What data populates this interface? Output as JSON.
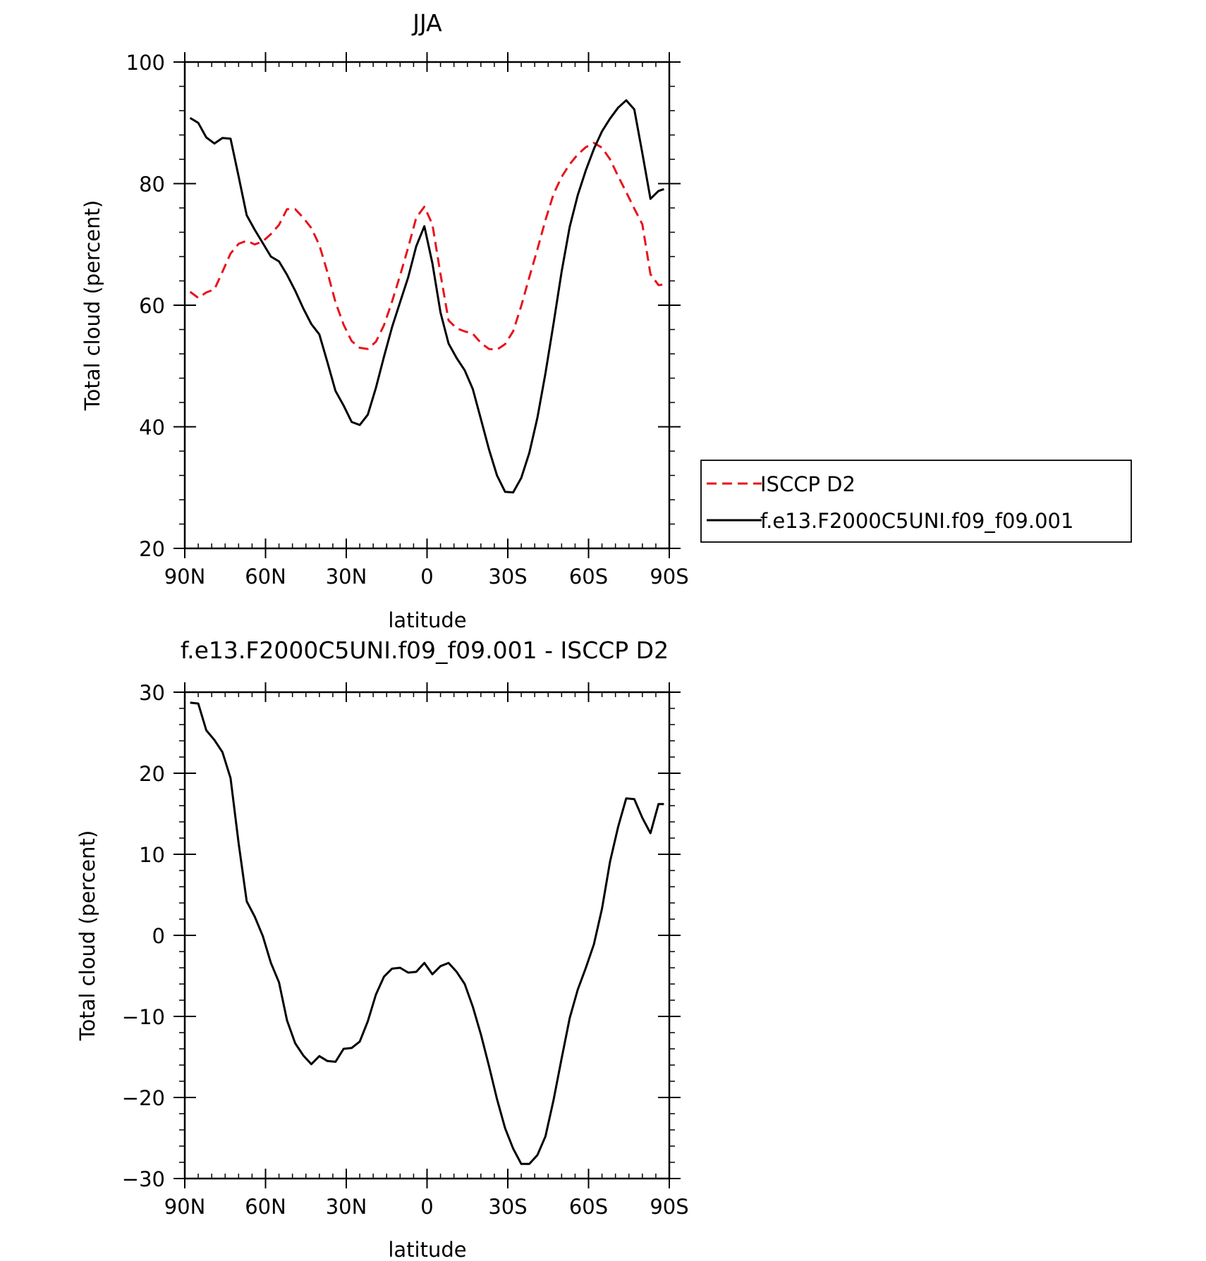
{
  "chart_data": [
    {
      "type": "line",
      "title": "JJA",
      "xlabel": "latitude",
      "ylabel": "Total cloud (percent)",
      "xlim": [
        -90,
        90
      ],
      "ylim": [
        20,
        100
      ],
      "x_ticks": [
        {
          "value": -90,
          "label": "90N"
        },
        {
          "value": -60,
          "label": "60N"
        },
        {
          "value": -30,
          "label": "30N"
        },
        {
          "value": 0,
          "label": "0"
        },
        {
          "value": 30,
          "label": "30S"
        },
        {
          "value": 60,
          "label": "60S"
        },
        {
          "value": 90,
          "label": "90S"
        }
      ],
      "y_ticks": [
        20,
        40,
        60,
        80,
        100
      ],
      "legend": {
        "placement": "right",
        "entries": [
          {
            "name": "ISCCP D2",
            "color": "#e8141c",
            "style": "dashed"
          },
          {
            "name": "f.e13.F2000C5UNI.f09_f09.001",
            "color": "#000000",
            "style": "solid"
          }
        ]
      },
      "series": [
        {
          "name": "ISCCP D2",
          "color": "#e8141c",
          "style": "dashed",
          "x": [
            -88,
            -85,
            -82,
            -79,
            -76,
            -73,
            -70,
            -67,
            -64,
            -61,
            -58,
            -55,
            -52,
            -49,
            -46,
            -43,
            -40,
            -37,
            -34,
            -31,
            -28,
            -25,
            -22,
            -19,
            -16,
            -13,
            -10,
            -7,
            -4,
            -1,
            2,
            5,
            8,
            11,
            14,
            17,
            20,
            23,
            26,
            29,
            32,
            35,
            38,
            41,
            44,
            47,
            50,
            53,
            56,
            59,
            62,
            65,
            68,
            71,
            74,
            77,
            80,
            83,
            86,
            88
          ],
          "values": [
            62.2,
            61.2,
            62.1,
            62.6,
            65.5,
            68.5,
            70.1,
            70.6,
            70.0,
            70.5,
            71.7,
            73.2,
            75.8,
            75.8,
            74.4,
            72.7,
            69.9,
            65.4,
            60.5,
            56.8,
            54.1,
            53.0,
            52.8,
            54.0,
            56.7,
            60.6,
            64.9,
            69.5,
            74.4,
            76.2,
            73.3,
            65.1,
            57.5,
            56.2,
            55.7,
            55.3,
            53.8,
            52.8,
            52.7,
            53.6,
            55.7,
            59.9,
            64.6,
            69.2,
            74.0,
            78.3,
            81.1,
            83.2,
            84.8,
            86.0,
            86.7,
            85.9,
            84.0,
            81.2,
            78.6,
            75.9,
            73.3,
            65.1,
            63.3,
            63.4
          ],
          "_note": "x in degrees latitude, negative = N, positive = S"
        },
        {
          "name": "f.e13.F2000C5UNI.f09_f09.001",
          "color": "#000000",
          "style": "solid",
          "x": [
            -88,
            -85,
            -82,
            -79,
            -76,
            -73,
            -70,
            -67,
            -64,
            -61,
            -58,
            -55,
            -52,
            -49,
            -46,
            -43,
            -40,
            -37,
            -34,
            -31,
            -28,
            -25,
            -22,
            -19,
            -16,
            -13,
            -10,
            -7,
            -4,
            -1,
            2,
            5,
            8,
            11,
            14,
            17,
            20,
            23,
            26,
            29,
            32,
            35,
            38,
            41,
            44,
            47,
            50,
            53,
            56,
            59,
            62,
            65,
            68,
            71,
            74,
            77,
            80,
            83,
            86,
            88
          ],
          "values": [
            90.8,
            90.0,
            87.6,
            86.6,
            87.5,
            87.4,
            81.2,
            74.8,
            72.4,
            70.2,
            68.0,
            67.2,
            65.0,
            62.4,
            59.5,
            56.9,
            55.2,
            50.6,
            45.9,
            43.5,
            40.8,
            40.3,
            42.0,
            46.4,
            51.5,
            56.4,
            60.5,
            64.6,
            69.7,
            73.0,
            66.9,
            58.8,
            53.7,
            51.3,
            49.3,
            46.2,
            41.3,
            36.3,
            32.0,
            29.3,
            29.2,
            31.6,
            35.7,
            41.5,
            48.8,
            57.0,
            65.5,
            72.9,
            78.1,
            82.2,
            85.7,
            88.6,
            90.7,
            92.5,
            93.7,
            92.2,
            85.0,
            77.5,
            78.8,
            79.1
          ]
        }
      ]
    },
    {
      "type": "line",
      "title": "f.e13.F2000C5UNI.f09_f09.001 - ISCCP D2",
      "xlabel": "latitude",
      "ylabel": "Total cloud (percent)",
      "xlim": [
        -90,
        90
      ],
      "ylim": [
        -30,
        30
      ],
      "x_ticks": [
        {
          "value": -90,
          "label": "90N"
        },
        {
          "value": -60,
          "label": "60N"
        },
        {
          "value": -30,
          "label": "30N"
        },
        {
          "value": 0,
          "label": "0"
        },
        {
          "value": 30,
          "label": "30S"
        },
        {
          "value": 60,
          "label": "60S"
        },
        {
          "value": 90,
          "label": "90S"
        }
      ],
      "y_ticks": [
        {
          "value": -30,
          "label": "−30"
        },
        {
          "value": -20,
          "label": "−20"
        },
        {
          "value": -10,
          "label": "−10"
        },
        {
          "value": 0,
          "label": "0"
        },
        {
          "value": 10,
          "label": "10"
        },
        {
          "value": 20,
          "label": "20"
        },
        {
          "value": 30,
          "label": "30"
        }
      ],
      "series": [
        {
          "color": "#000000",
          "style": "solid",
          "x": [
            -88,
            -85,
            -82,
            -79,
            -76,
            -73,
            -70,
            -67,
            -64,
            -61,
            -58,
            -55,
            -52,
            -49,
            -46,
            -43,
            -40,
            -37,
            -34,
            -31,
            -28,
            -25,
            -22,
            -19,
            -16,
            -13,
            -10,
            -7,
            -4,
            -1,
            2,
            5,
            8,
            11,
            14,
            17,
            20,
            23,
            26,
            29,
            32,
            35,
            38,
            41,
            44,
            47,
            50,
            53,
            56,
            59,
            62,
            65,
            68,
            71,
            74,
            77,
            80,
            83,
            86,
            88
          ],
          "values": [
            28.7,
            28.6,
            25.3,
            24.1,
            22.6,
            19.4,
            11.4,
            4.2,
            2.3,
            -0.1,
            -3.4,
            -5.8,
            -10.5,
            -13.3,
            -14.8,
            -15.9,
            -14.9,
            -15.5,
            -15.6,
            -14.0,
            -13.9,
            -13.1,
            -10.6,
            -7.3,
            -5.1,
            -4.1,
            -4.0,
            -4.6,
            -4.5,
            -3.4,
            -4.8,
            -3.8,
            -3.4,
            -4.5,
            -6.0,
            -8.8,
            -12.2,
            -16.1,
            -20.2,
            -23.8,
            -26.3,
            -28.2,
            -28.2,
            -27.1,
            -24.8,
            -20.3,
            -15.2,
            -10.2,
            -6.7,
            -4.0,
            -1.1,
            3.3,
            9.1,
            13.4,
            16.9,
            16.8,
            14.5,
            12.6,
            16.2,
            16.2
          ]
        }
      ]
    }
  ]
}
